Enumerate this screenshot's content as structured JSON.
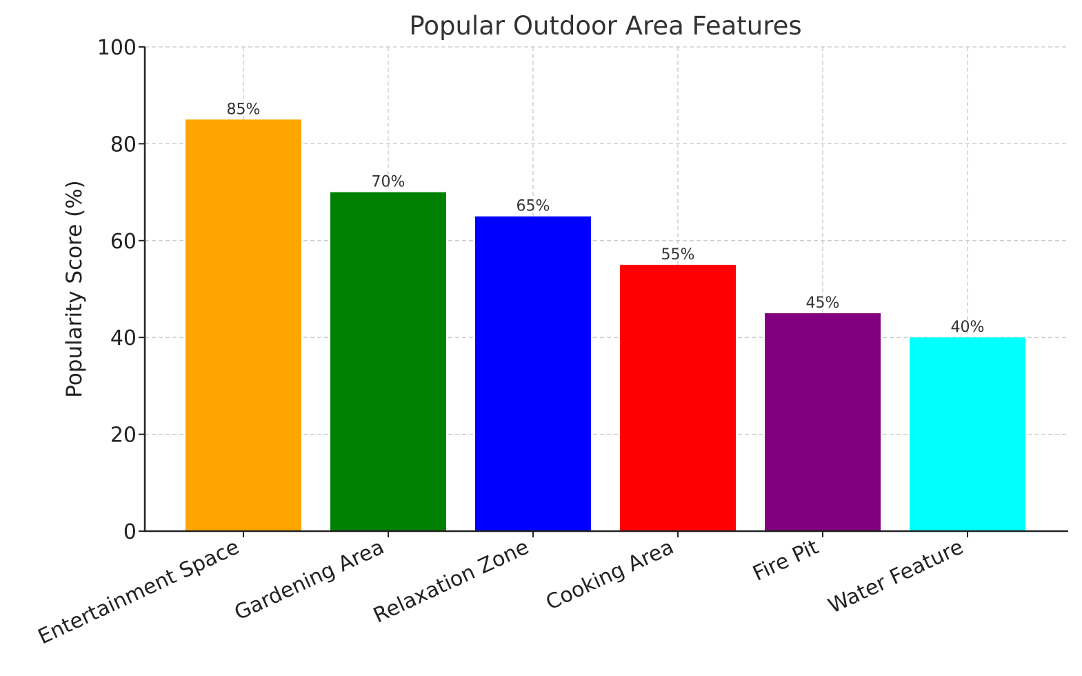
{
  "chart_data": {
    "type": "bar",
    "title": "Popular Outdoor Area Features",
    "xlabel": "",
    "ylabel": "Popularity Score (%)",
    "ylim": [
      0,
      100
    ],
    "yticks": [
      0,
      20,
      40,
      60,
      80,
      100
    ],
    "grid": true,
    "categories": [
      "Entertainment Space",
      "Gardening Area",
      "Relaxation Zone",
      "Cooking Area",
      "Fire Pit",
      "Water Feature"
    ],
    "values": [
      85,
      70,
      65,
      55,
      45,
      40
    ],
    "data_labels": [
      "85%",
      "70%",
      "65%",
      "55%",
      "45%",
      "40%"
    ],
    "colors": [
      "#ffa500",
      "#008000",
      "#0000ff",
      "#ff0000",
      "#800080",
      "#00ffff"
    ]
  }
}
